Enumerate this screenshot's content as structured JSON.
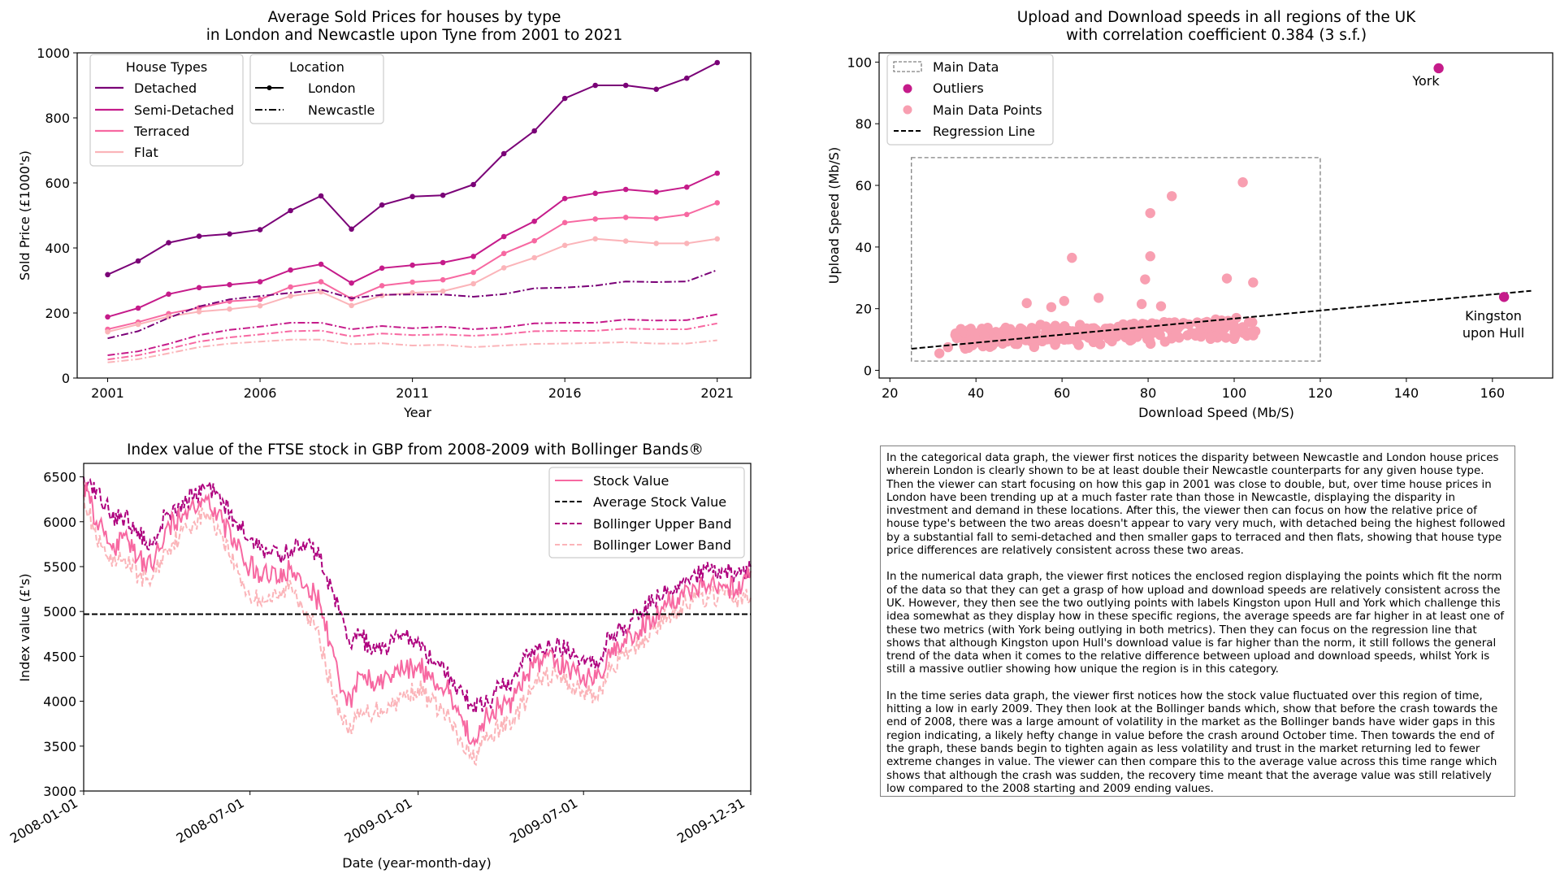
{
  "charts": {
    "houses": {
      "title_line1": "Average Sold Prices for houses by type",
      "title_line2": "in London and Newcastle upon Tyne from 2001 to 2021",
      "xlabel": "Year",
      "ylabel": "Sold Price (£1000's)",
      "legend_types_title": "House Types",
      "legend_location_title": "Location",
      "legend_london": "London",
      "legend_newcastle": "Newcastle"
    },
    "speeds": {
      "title_line1": "Upload and Download speeds in all regions of the UK",
      "title_line2": "with correlation coefficient 0.384 (3 s.f.)",
      "xlabel": "Download Speed (Mb/S)",
      "ylabel": "Upload Speed (Mb/S)",
      "legend_main": "Main Data",
      "legend_outliers": "Outliers",
      "legend_points": "Main Data Points",
      "legend_regression": "Regression Line",
      "label_york": "York",
      "label_hull_line1": "Kingston",
      "label_hull_line2": "upon Hull"
    },
    "ftse": {
      "title": "Index value of the FTSE stock in GBP from 2008-2009 with Bollinger Bands®",
      "xlabel": "Date (year-month-day)",
      "ylabel": "Index value (£'s)",
      "legend_stock": "Stock Value",
      "legend_average": "Average Stock Value",
      "legend_upper": "Bollinger Upper Band",
      "legend_lower": "Bollinger Lower Band"
    }
  },
  "description": {
    "p1": "In the categorical data graph, the viewer first notices the disparity between Newcastle and London house prices wherein London is clearly shown to be at least double their Newcastle counterparts for any given house type. Then the viewer can start focusing on how this gap in 2001 was close to double, but, over time house prices in London have been trending up at a much faster rate than those in Newcastle, displaying the disparity in investment and demand in these locations. After this, the viewer then can focus on how the relative price of house type's between the two areas doesn't appear to vary very much, with detached being the highest followed by a substantial fall to semi-detached and then smaller gaps to terraced and then flats, showing that house type price differences are relatively consistent across these two areas.",
    "p2": "In the numerical data graph, the viewer first notices the enclosed region displaying the points which fit the norm of the data so that they can get a grasp of how upload and download speeds are relatively consistent across the UK. However, they then see the two outlying points with labels Kingston upon Hull and York which challenge this idea somewhat as they display how in these specific regions, the average speeds are far higher in at least one of these two metrics (with York being outlying in both metrics). Then they can focus on the regression line that shows that although Kingston upon Hull's download value is far higher than the norm, it still follows the general trend of the data when it comes to the relative difference between upload and download speeds, whilst York is still a massive outlier showing how unique the region is in this category.",
    "p3": "In the time series data graph, the viewer first notices how the stock value fluctuated over this region of time, hitting a low in early 2009. They then look at the Bollinger bands which, show that before the crash towards the end of 2008, there was a large amount of volatility in the market as the Bollinger bands have wider gaps in this region indicating, a likely hefty change in value before the crash around October time. Then towards the end of the graph, these bands begin to tighten again as less volatility and trust in the market returning led to fewer extreme changes in value. The viewer can then compare this to the average value across this time range which shows that although the crash was sudden, the recovery time meant that the average value was still relatively low compared to the 2008 starting and 2009 ending values."
  },
  "chart_data": [
    {
      "type": "line",
      "title": "Average Sold Prices for houses by type\nin London and Newcastle upon Tyne from 2001 to 2021",
      "xlabel": "Year",
      "ylabel": "Sold Price (£1000's)",
      "xlim": [
        2000,
        2022.1
      ],
      "ylim": [
        0,
        1000
      ],
      "xticks": [
        2001,
        2006,
        2011,
        2016,
        2021
      ],
      "yticks": [
        0,
        200,
        400,
        600,
        800,
        1000
      ],
      "x": [
        2001,
        2002,
        2003,
        2004,
        2005,
        2006,
        2007,
        2008,
        2009,
        2010,
        2011,
        2012,
        2013,
        2014,
        2015,
        2016,
        2017,
        2018,
        2019,
        2020,
        2021
      ],
      "legend": {
        "House Types": [
          "Detached",
          "Semi-Detached",
          "Terraced",
          "Flat"
        ],
        "Location": [
          "London",
          "Newcastle"
        ]
      },
      "colors": {
        "Detached": "#7a0177",
        "Semi-Detached": "#c51b8a",
        "Terraced": "#f768a1",
        "Flat": "#fbb4b9"
      },
      "series": [
        {
          "type": "Detached",
          "location": "London",
          "values": [
            318,
            360,
            416,
            436,
            443,
            456,
            515,
            560,
            458,
            532,
            558,
            562,
            595,
            690,
            760,
            860,
            900,
            900,
            888,
            922,
            970
          ]
        },
        {
          "type": "Semi-Detached",
          "location": "London",
          "values": [
            188,
            215,
            258,
            278,
            287,
            296,
            332,
            350,
            292,
            338,
            347,
            355,
            374,
            435,
            482,
            552,
            568,
            580,
            572,
            587,
            630
          ]
        },
        {
          "type": "Terraced",
          "location": "London",
          "values": [
            150,
            172,
            198,
            216,
            236,
            242,
            280,
            296,
            244,
            284,
            295,
            302,
            325,
            383,
            422,
            478,
            489,
            494,
            491,
            503,
            539
          ]
        },
        {
          "type": "Flat",
          "location": "London",
          "values": [
            142,
            165,
            189,
            204,
            212,
            222,
            252,
            265,
            223,
            254,
            262,
            267,
            290,
            339,
            370,
            408,
            428,
            421,
            414,
            414,
            428
          ]
        },
        {
          "type": "Detached",
          "location": "Newcastle",
          "values": [
            122,
            144,
            185,
            220,
            242,
            252,
            262,
            272,
            245,
            256,
            257,
            257,
            250,
            258,
            276,
            278,
            284,
            297,
            295,
            297,
            332
          ]
        },
        {
          "type": "Semi-Detached",
          "location": "Newcastle",
          "values": [
            70,
            82,
            105,
            132,
            148,
            158,
            170,
            170,
            150,
            160,
            153,
            158,
            150,
            156,
            168,
            170,
            170,
            180,
            177,
            178,
            196
          ]
        },
        {
          "type": "Terraced",
          "location": "Newcastle",
          "values": [
            57,
            70,
            90,
            112,
            125,
            134,
            144,
            146,
            128,
            137,
            132,
            134,
            130,
            135,
            144,
            145,
            145,
            152,
            150,
            150,
            168
          ]
        },
        {
          "type": "Flat",
          "location": "Newcastle",
          "values": [
            48,
            58,
            76,
            95,
            106,
            112,
            118,
            118,
            104,
            107,
            100,
            102,
            95,
            100,
            105,
            106,
            108,
            110,
            106,
            106,
            116
          ]
        }
      ]
    },
    {
      "type": "scatter",
      "title": "Upload and Download speeds in all regions of the UK\nwith correlation coefficient 0.384 (3 s.f.)",
      "xlabel": "Download Speed (Mb/S)",
      "ylabel": "Upload Speed (Mb/S)",
      "xlim": [
        17.5,
        174
      ],
      "ylim": [
        -2.5,
        103
      ],
      "xticks": [
        20,
        40,
        60,
        80,
        100,
        120,
        140,
        160
      ],
      "yticks": [
        0,
        20,
        40,
        60,
        80,
        100
      ],
      "colors": {
        "points": "#f89fb1",
        "outliers": "#c51b8a",
        "box": "#808080",
        "regression": "#000000"
      },
      "main_data_box": {
        "x": [
          25,
          120
        ],
        "y": [
          3,
          69
        ]
      },
      "regression_line": {
        "x": [
          25,
          169
        ],
        "y": [
          7,
          25.8
        ]
      },
      "outliers": [
        {
          "label": "York",
          "x": 147.5,
          "y": 98
        },
        {
          "label": "Kingston upon Hull",
          "x": 162.7,
          "y": 23.8
        }
      ],
      "main_points_notable": [
        [
          31.5,
          5.5
        ],
        [
          62.3,
          36.5
        ],
        [
          80.5,
          51
        ],
        [
          85.5,
          56.5
        ],
        [
          102,
          61
        ],
        [
          80.5,
          37
        ],
        [
          79.3,
          29.5
        ],
        [
          98.3,
          29.8
        ],
        [
          104.4,
          28.5
        ],
        [
          51.8,
          21.8
        ],
        [
          57.5,
          20.5
        ],
        [
          60.5,
          22.5
        ],
        [
          68.5,
          23.5
        ],
        [
          78.5,
          21.5
        ],
        [
          83,
          20.8
        ],
        [
          100.5,
          17
        ],
        [
          95.7,
          16.5
        ],
        [
          33.5,
          7.5
        ],
        [
          40,
          9
        ],
        [
          42,
          11.3
        ],
        [
          55,
          14.8
        ],
        [
          89.5,
          14.9
        ],
        [
          86.5,
          12.2
        ]
      ],
      "main_points_note": "A dense cluster of roughly 300 further points with download 35 to 105 Mb/S and upload 8 to 16 Mb/S."
    },
    {
      "type": "line",
      "title": "Index value of the FTSE stock in GBP from 2008-2009 with Bollinger Bands®",
      "xlabel": "Date (year-month-day)",
      "ylabel": "Index value (£'s)",
      "xlim": [
        "2008-01-01",
        "2009-12-31"
      ],
      "ylim": [
        3000,
        6650
      ],
      "xticks": [
        "2008-01-01",
        "2008-07-01",
        "2009-01-01",
        "2009-07-01",
        "2009-12-31"
      ],
      "yticks": [
        3000,
        3500,
        4000,
        4500,
        5000,
        5500,
        6000,
        6500
      ],
      "average_stock_value": 4970,
      "colors": {
        "Stock Value": "#f768a1",
        "Average Stock Value": "#000000",
        "Bollinger Upper Band": "#ae017e",
        "Bollinger Lower Band": "#fbb4b9"
      },
      "series": [
        {
          "name": "Stock Value",
          "x": [
            "2008-01-01",
            "2008-01-15",
            "2008-02-01",
            "2008-02-15",
            "2008-03-01",
            "2008-03-15",
            "2008-04-01",
            "2008-04-15",
            "2008-05-01",
            "2008-05-15",
            "2008-06-01",
            "2008-06-15",
            "2008-07-01",
            "2008-07-15",
            "2008-08-01",
            "2008-08-15",
            "2008-09-01",
            "2008-09-15",
            "2008-10-01",
            "2008-10-15",
            "2008-11-01",
            "2008-11-15",
            "2008-12-01",
            "2008-12-15",
            "2009-01-01",
            "2009-01-15",
            "2009-02-01",
            "2009-02-15",
            "2009-03-01",
            "2009-03-15",
            "2009-04-01",
            "2009-04-15",
            "2009-05-01",
            "2009-05-15",
            "2009-06-01",
            "2009-06-15",
            "2009-07-01",
            "2009-07-15",
            "2009-08-01",
            "2009-08-15",
            "2009-09-01",
            "2009-09-15",
            "2009-10-01",
            "2009-10-15",
            "2009-11-01",
            "2009-11-15",
            "2009-12-01",
            "2009-12-15",
            "2009-12-31"
          ],
          "values": [
            6450,
            6000,
            5700,
            5850,
            5600,
            5500,
            5950,
            6050,
            6150,
            6250,
            6000,
            5750,
            5500,
            5400,
            5350,
            5500,
            5300,
            5100,
            4500,
            3950,
            4300,
            4150,
            4250,
            4350,
            4400,
            4250,
            4150,
            3850,
            3550,
            3800,
            3950,
            4000,
            4300,
            4450,
            4450,
            4350,
            4300,
            4250,
            4600,
            4700,
            4800,
            4950,
            5100,
            5200,
            5250,
            5300,
            5300,
            5250,
            5450
          ]
        },
        {
          "name": "Bollinger Upper Band",
          "x": [
            "2008-01-01",
            "2008-01-15",
            "2008-02-01",
            "2008-02-15",
            "2008-03-01",
            "2008-03-15",
            "2008-04-01",
            "2008-04-15",
            "2008-05-01",
            "2008-05-15",
            "2008-06-01",
            "2008-06-15",
            "2008-07-01",
            "2008-07-15",
            "2008-08-01",
            "2008-08-15",
            "2008-09-01",
            "2008-09-15",
            "2008-10-01",
            "2008-10-15",
            "2008-11-01",
            "2008-11-15",
            "2008-12-01",
            "2008-12-15",
            "2009-01-01",
            "2009-01-15",
            "2009-02-01",
            "2009-02-15",
            "2009-03-01",
            "2009-03-15",
            "2009-04-01",
            "2009-04-15",
            "2009-05-01",
            "2009-05-15",
            "2009-06-01",
            "2009-06-15",
            "2009-07-01",
            "2009-07-15",
            "2009-08-01",
            "2009-08-15",
            "2009-09-01",
            "2009-09-15",
            "2009-10-01",
            "2009-10-15",
            "2009-11-01",
            "2009-11-15",
            "2009-12-01",
            "2009-12-15",
            "2009-12-31"
          ],
          "values": [
            6500,
            6350,
            6050,
            6050,
            5900,
            5750,
            6100,
            6200,
            6300,
            6400,
            6250,
            6000,
            5800,
            5700,
            5600,
            5700,
            5750,
            5600,
            5200,
            4700,
            4700,
            4550,
            4650,
            4750,
            4700,
            4450,
            4300,
            4150,
            3950,
            3950,
            4150,
            4250,
            4500,
            4600,
            4600,
            4550,
            4500,
            4450,
            4750,
            4850,
            5000,
            5100,
            5250,
            5350,
            5400,
            5450,
            5450,
            5400,
            5500
          ]
        },
        {
          "name": "Bollinger Lower Band",
          "x": [
            "2008-01-01",
            "2008-01-15",
            "2008-02-01",
            "2008-02-15",
            "2008-03-01",
            "2008-03-15",
            "2008-04-01",
            "2008-04-15",
            "2008-05-01",
            "2008-05-15",
            "2008-06-01",
            "2008-06-15",
            "2008-07-01",
            "2008-07-15",
            "2008-08-01",
            "2008-08-15",
            "2008-09-01",
            "2008-09-15",
            "2008-10-01",
            "2008-10-15",
            "2008-11-01",
            "2008-11-15",
            "2008-12-01",
            "2008-12-15",
            "2009-01-01",
            "2009-01-15",
            "2009-02-01",
            "2009-02-15",
            "2009-03-01",
            "2009-03-15",
            "2009-04-01",
            "2009-04-15",
            "2009-05-01",
            "2009-05-15",
            "2009-06-01",
            "2009-06-15",
            "2009-07-01",
            "2009-07-15",
            "2009-08-01",
            "2009-08-15",
            "2009-09-01",
            "2009-09-15",
            "2009-10-01",
            "2009-10-15",
            "2009-11-01",
            "2009-11-15",
            "2009-12-01",
            "2009-12-15",
            "2009-12-31"
          ],
          "values": [
            6300,
            5800,
            5500,
            5600,
            5400,
            5350,
            5700,
            5850,
            6000,
            6100,
            5850,
            5500,
            5150,
            5150,
            5150,
            5300,
            5000,
            4700,
            4050,
            3700,
            3850,
            3900,
            3950,
            4050,
            4150,
            4000,
            3850,
            3550,
            3350,
            3550,
            3700,
            3800,
            4050,
            4250,
            4300,
            4200,
            4100,
            4050,
            4400,
            4500,
            4650,
            4800,
            4950,
            5050,
            5150,
            5150,
            5200,
            5150,
            5150
          ]
        }
      ]
    }
  ]
}
